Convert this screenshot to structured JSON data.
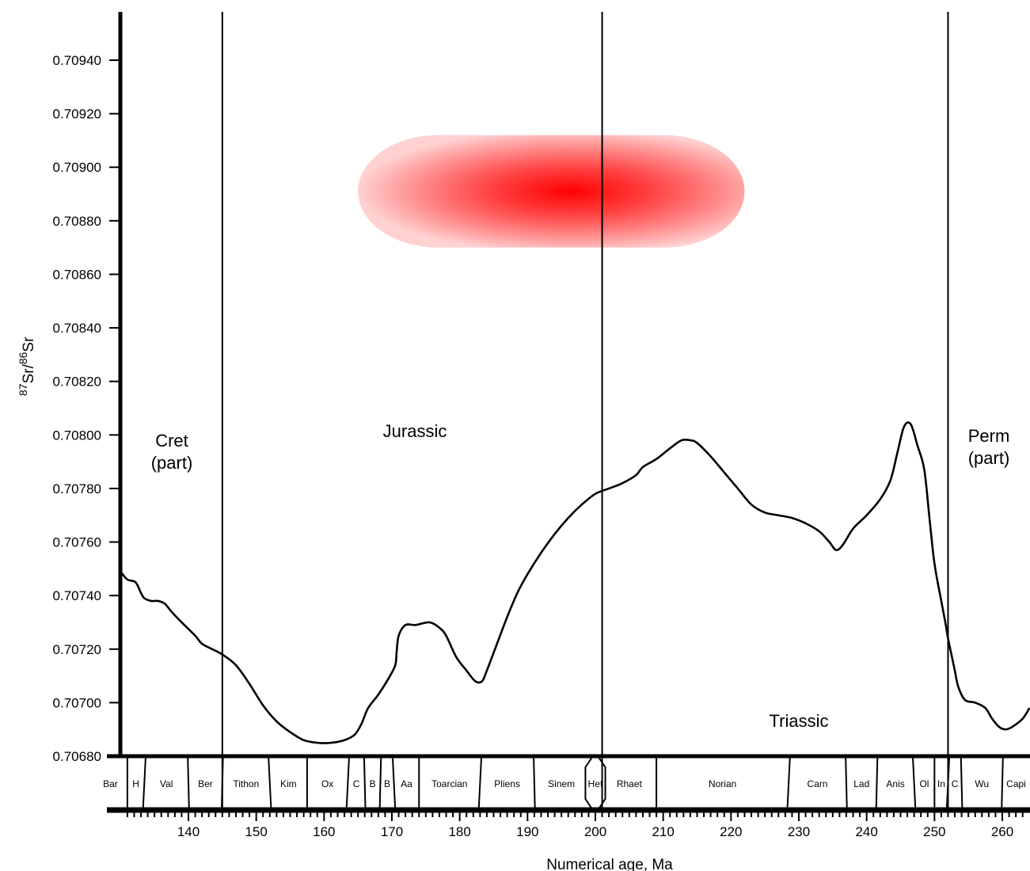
{
  "chart_data": {
    "type": "line",
    "title": "",
    "xlabel": "Numerical age, Ma",
    "ylabel_parts": {
      "sup1": "87",
      "base1": "Sr/",
      "sup2": "86",
      "base2": "Sr"
    },
    "xlim": [
      130,
      264
    ],
    "ylim": [
      0.7068,
      0.7096
    ],
    "x_ticks": [
      140,
      150,
      160,
      170,
      180,
      190,
      200,
      210,
      220,
      230,
      240,
      250,
      260
    ],
    "y_ticks": [
      "0.70680",
      "0.70700",
      "0.70720",
      "0.70740",
      "0.70760",
      "0.70780",
      "0.70800",
      "0.70820",
      "0.70840",
      "0.70860",
      "0.70880",
      "0.70900",
      "0.70920",
      "0.70940"
    ],
    "period_boundaries": [
      145,
      201,
      252
    ],
    "periods": [
      {
        "id": "cretaceous",
        "lines": [
          "Cret",
          "(part)"
        ]
      },
      {
        "id": "jurassic",
        "lines": [
          "Jurassic"
        ]
      },
      {
        "id": "triassic",
        "lines": [
          "Triassic"
        ]
      },
      {
        "id": "permian",
        "lines": [
          "Perm",
          "(part)"
        ]
      }
    ],
    "stages": [
      {
        "label": "Bar",
        "from": 125.0,
        "to": 131.0
      },
      {
        "label": "H",
        "from": 131.0,
        "to": 133.5
      },
      {
        "label": "Val",
        "from": 133.5,
        "to": 140.0
      },
      {
        "label": "Ber",
        "from": 140.0,
        "to": 145.0
      },
      {
        "label": "Tithon",
        "from": 145.0,
        "to": 152.0
      },
      {
        "label": "Kim",
        "from": 152.0,
        "to": 157.5
      },
      {
        "label": "Ox",
        "from": 157.5,
        "to": 163.5
      },
      {
        "label": "C",
        "from": 163.5,
        "to": 166.0
      },
      {
        "label": "B",
        "from": 166.0,
        "to": 168.3
      },
      {
        "label": "B",
        "from": 168.3,
        "to": 170.3
      },
      {
        "label": "Aa",
        "from": 170.3,
        "to": 174.0
      },
      {
        "label": "Toarcian",
        "from": 174.0,
        "to": 183.0
      },
      {
        "label": "Pliens",
        "from": 183.0,
        "to": 191.0
      },
      {
        "label": "Sinem",
        "from": 191.0,
        "to": 199.0
      },
      {
        "label": "Het",
        "from": 199.0,
        "to": 201.0
      },
      {
        "label": "Rhaet",
        "from": 201.0,
        "to": 209.0
      },
      {
        "label": "Norian",
        "from": 209.0,
        "to": 228.5
      },
      {
        "label": "Carn",
        "from": 228.5,
        "to": 237.0
      },
      {
        "label": "Lad",
        "from": 237.0,
        "to": 241.5
      },
      {
        "label": "Anis",
        "from": 241.5,
        "to": 247.0
      },
      {
        "label": "Ol",
        "from": 247.0,
        "to": 250.0
      },
      {
        "label": "In",
        "from": 250.0,
        "to": 252.0
      },
      {
        "label": "C",
        "from": 252.0,
        "to": 254.0
      },
      {
        "label": "Wu",
        "from": 254.0,
        "to": 260.0
      },
      {
        "label": "Capi",
        "from": 260.0,
        "to": 266.0
      }
    ],
    "series": [
      {
        "color": "#000000",
        "x": [
          130,
          131,
          132.2,
          133,
          133.5,
          134.5,
          135.5,
          136.5,
          137.5,
          139,
          141,
          142,
          143.5,
          145,
          147,
          149,
          151,
          153,
          155,
          157,
          159,
          161,
          163,
          164.5,
          165.5,
          166.5,
          168,
          169.5,
          170.5,
          170.7,
          171,
          172,
          173.5,
          175.5,
          177,
          178,
          179.5,
          181,
          182.3,
          183.3,
          184,
          185.5,
          187,
          188.5,
          190,
          192,
          194,
          196,
          198,
          200,
          202,
          204,
          206,
          207,
          209,
          211,
          212.7,
          214,
          215,
          217,
          219,
          221,
          223,
          225,
          227,
          229,
          231,
          233,
          234.5,
          235.5,
          236.5,
          238,
          240,
          242,
          243.5,
          244.5,
          245.5,
          246.5,
          247.5,
          248.5,
          249.3,
          250,
          251,
          251.6,
          252,
          252.5,
          253,
          253.5,
          254.5,
          256,
          257.5,
          258.5,
          259.5,
          260.5,
          261.5,
          263,
          264
        ],
        "y": [
          0.70749,
          0.70746,
          0.70745,
          0.70741,
          0.70739,
          0.70738,
          0.70738,
          0.70737,
          0.70734,
          0.7073,
          0.70725,
          0.70722,
          0.7072,
          0.70718,
          0.70714,
          0.70707,
          0.70699,
          0.70693,
          0.70689,
          0.70686,
          0.70685,
          0.70685,
          0.70686,
          0.70688,
          0.70692,
          0.70698,
          0.70703,
          0.70709,
          0.70714,
          0.70719,
          0.70725,
          0.70729,
          0.70729,
          0.7073,
          0.70728,
          0.70725,
          0.70717,
          0.70712,
          0.70708,
          0.70708,
          0.70712,
          0.70722,
          0.70732,
          0.70741,
          0.70748,
          0.70756,
          0.70763,
          0.70769,
          0.70774,
          0.70778,
          0.7078,
          0.70782,
          0.70785,
          0.70788,
          0.70791,
          0.70795,
          0.70798,
          0.70798,
          0.70797,
          0.70792,
          0.70786,
          0.7078,
          0.70774,
          0.70771,
          0.7077,
          0.70769,
          0.70767,
          0.70764,
          0.7076,
          0.70757,
          0.70759,
          0.70765,
          0.7077,
          0.70776,
          0.70783,
          0.70793,
          0.70803,
          0.70804,
          0.70796,
          0.70787,
          0.70768,
          0.70752,
          0.70738,
          0.7073,
          0.70724,
          0.70718,
          0.70712,
          0.70706,
          0.70701,
          0.707,
          0.70698,
          0.70694,
          0.70691,
          0.7069,
          0.70691,
          0.70694,
          0.70698
        ]
      }
    ],
    "highlight": {
      "color": "#ff0000",
      "x_range": [
        165,
        222
      ],
      "y_range": [
        0.7087,
        0.70912
      ]
    },
    "grid": false,
    "legend": "none"
  }
}
